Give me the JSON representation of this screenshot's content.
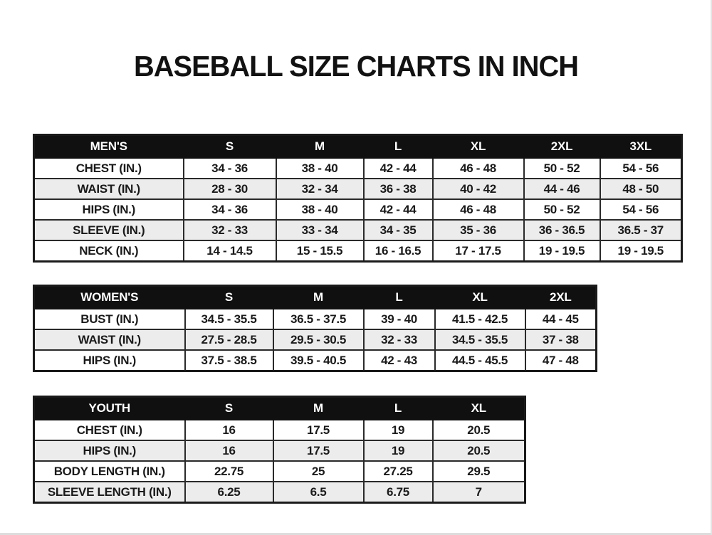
{
  "page": {
    "title": "BASEBALL SIZE CHARTS IN INCH"
  },
  "colors": {
    "header_bg": "#101010",
    "header_text": "#ffffff",
    "row_alt_bg": "#ececec",
    "border": "#2a2a2a",
    "page_bg": "#ffffff",
    "text": "#1a1a1a"
  },
  "chart_data": [
    {
      "type": "table",
      "title": "MEN'S",
      "headers": [
        "MEN'S",
        "S",
        "M",
        "L",
        "XL",
        "2XL",
        "3XL"
      ],
      "rows": [
        [
          "CHEST (IN.)",
          "34 - 36",
          "38 - 40",
          "42 - 44",
          "46 - 48",
          "50 - 52",
          "54 - 56"
        ],
        [
          "WAIST (IN.)",
          "28 - 30",
          "32 - 34",
          "36 - 38",
          "40 - 42",
          "44 - 46",
          "48 - 50"
        ],
        [
          "HIPS (IN.)",
          "34 - 36",
          "38 - 40",
          "42 - 44",
          "46 - 48",
          "50 - 52",
          "54 - 56"
        ],
        [
          "SLEEVE (IN.)",
          "32 - 33",
          "33 - 34",
          "34 - 35",
          "35 - 36",
          "36 - 36.5",
          "36.5 - 37"
        ],
        [
          "NECK (IN.)",
          "14 - 14.5",
          "15 - 15.5",
          "16 - 16.5",
          "17 - 17.5",
          "19 - 19.5",
          "19 - 19.5"
        ]
      ]
    },
    {
      "type": "table",
      "title": "WOMEN'S",
      "headers": [
        "WOMEN'S",
        "S",
        "M",
        "L",
        "XL",
        "2XL"
      ],
      "rows": [
        [
          "BUST (IN.)",
          "34.5 - 35.5",
          "36.5 - 37.5",
          "39 - 40",
          "41.5 - 42.5",
          "44 - 45"
        ],
        [
          "WAIST (IN.)",
          "27.5 - 28.5",
          "29.5 - 30.5",
          "32 - 33",
          "34.5 - 35.5",
          "37 - 38"
        ],
        [
          "HIPS (IN.)",
          "37.5 - 38.5",
          "39.5 - 40.5",
          "42 - 43",
          "44.5 - 45.5",
          "47 - 48"
        ]
      ]
    },
    {
      "type": "table",
      "title": "YOUTH",
      "headers": [
        "YOUTH",
        "S",
        "M",
        "L",
        "XL"
      ],
      "rows": [
        [
          "CHEST (IN.)",
          "16",
          "17.5",
          "19",
          "20.5"
        ],
        [
          "HIPS (IN.)",
          "16",
          "17.5",
          "19",
          "20.5"
        ],
        [
          "BODY LENGTH (IN.)",
          "22.75",
          "25",
          "27.25",
          "29.5"
        ],
        [
          "SLEEVE LENGTH (IN.)",
          "6.25",
          "6.5",
          "6.75",
          "7"
        ]
      ]
    }
  ]
}
